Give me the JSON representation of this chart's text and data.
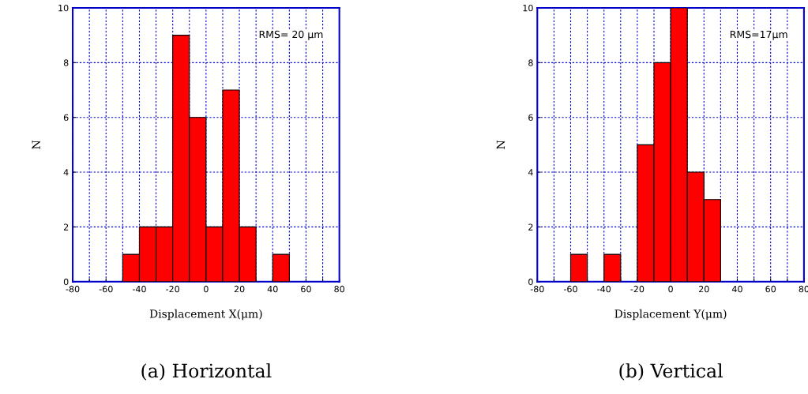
{
  "chart_data": [
    {
      "type": "histogram",
      "title": "(a) Horizontal",
      "xlabel": "Displacement X(μm)",
      "ylabel": "N",
      "annotations": [
        "RMS= 20 μm"
      ],
      "color": "#ff0000",
      "bins": [
        -50,
        -40,
        -30,
        -20,
        -10,
        0,
        10,
        20,
        30,
        40,
        50
      ],
      "values": [
        1,
        2,
        2,
        9,
        6,
        2,
        7,
        2,
        0,
        1
      ],
      "xlim": [
        -80,
        80
      ],
      "xticks": [
        -80,
        {
          "value": -70,
          "label": null
        },
        -60,
        {
          "value": -50,
          "label": null
        },
        -40,
        {
          "value": -30,
          "label": null
        },
        -20,
        {
          "value": -10,
          "label": null
        },
        0,
        {
          "value": 10,
          "label": null
        },
        20,
        {
          "value": 30,
          "label": null
        },
        40,
        {
          "value": 50,
          "label": null
        },
        60,
        {
          "value": 70,
          "label": null
        },
        80
      ],
      "ylim": [
        0,
        10
      ],
      "yticks": [
        0,
        2,
        4,
        6,
        8,
        10
      ],
      "grid": true
    },
    {
      "type": "histogram",
      "title": "(b) Vertical",
      "xlabel": "Displacement Y(μm)",
      "ylabel": "N",
      "annotations": [
        "RMS=17μm"
      ],
      "color": "#ff0000",
      "bins": [
        -60,
        -50,
        -40,
        -30,
        -20,
        -10,
        0,
        10,
        20,
        30
      ],
      "values": [
        1,
        0,
        1,
        0,
        5,
        8,
        10,
        4,
        3
      ],
      "xlim": [
        -80,
        80
      ],
      "xticks": [
        -80,
        {
          "value": -70,
          "label": null
        },
        -60,
        {
          "value": -50,
          "label": null
        },
        -40,
        {
          "value": -30,
          "label": null
        },
        -20,
        {
          "value": -10,
          "label": null
        },
        0,
        {
          "value": 10,
          "label": null
        },
        20,
        {
          "value": 30,
          "label": null
        },
        40,
        {
          "value": 50,
          "label": null
        },
        60,
        {
          "value": 70,
          "label": null
        },
        80
      ],
      "ylim": [
        0,
        10
      ],
      "yticks": [
        0,
        2,
        4,
        6,
        8,
        10
      ],
      "grid": true
    }
  ]
}
